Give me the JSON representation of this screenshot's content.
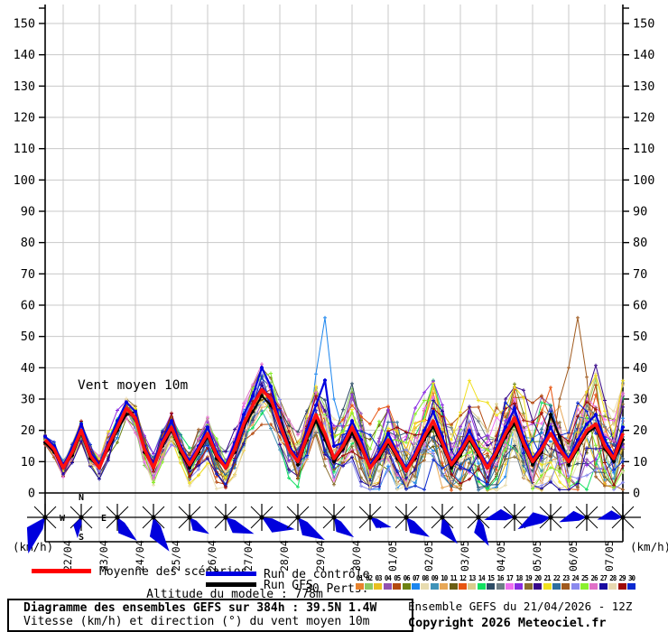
{
  "annotation": "Vent moyen 10m",
  "axes": {
    "unit_left": "(km/h)",
    "unit_right": "(km/h)",
    "y_min": 0,
    "y_max": 150,
    "y_step": 10
  },
  "legend": {
    "mean_label": "Moyenne des scénarios",
    "control_label": "Run de contrôle",
    "gfs_label": "Run GFS",
    "perts_label": "30 Perts.",
    "mean_color": "#ff0000",
    "control_color": "#0000e0",
    "gfs_color": "#000000"
  },
  "altitude_note": "Altitude du modele : 778m",
  "footer": {
    "title": "Diagramme des ensembles GEFS sur 384h : 39.5N 1.4W",
    "subtitle": "Vitesse (km/h) et direction (°) du vent moyen 10m",
    "run_info": "Ensemble GEFS du 21/04/2026 - 12Z",
    "copyright": "Copyright 2026 Meteociel.fr"
  },
  "perturbations": [
    {
      "num": "01",
      "color": "#e8822d"
    },
    {
      "num": "02",
      "color": "#8cc863"
    },
    {
      "num": "03",
      "color": "#e8c020"
    },
    {
      "num": "04",
      "color": "#9353b0"
    },
    {
      "num": "05",
      "color": "#b44a10"
    },
    {
      "num": "06",
      "color": "#6e8212"
    },
    {
      "num": "07",
      "color": "#1c86ee"
    },
    {
      "num": "08",
      "color": "#e8dcb0"
    },
    {
      "num": "09",
      "color": "#4093b8"
    },
    {
      "num": "10",
      "color": "#e8a858"
    },
    {
      "num": "11",
      "color": "#6b5e14"
    },
    {
      "num": "12",
      "color": "#e85510"
    },
    {
      "num": "13",
      "color": "#d9cc8d"
    },
    {
      "num": "14",
      "color": "#12e060"
    },
    {
      "num": "15",
      "color": "#2e4c66"
    },
    {
      "num": "16",
      "color": "#6e7e86"
    },
    {
      "num": "17",
      "color": "#ee6ef0"
    },
    {
      "num": "18",
      "color": "#8a2be2"
    },
    {
      "num": "19",
      "color": "#8a6e2e"
    },
    {
      "num": "20",
      "color": "#38088a"
    },
    {
      "num": "21",
      "color": "#f0e020"
    },
    {
      "num": "22",
      "color": "#2e6e9e"
    },
    {
      "num": "23",
      "color": "#a05a1e"
    },
    {
      "num": "24",
      "color": "#8a8aee"
    },
    {
      "num": "25",
      "color": "#8af02e"
    },
    {
      "num": "26",
      "color": "#e070c8"
    },
    {
      "num": "27",
      "color": "#1a0aa0"
    },
    {
      "num": "28",
      "color": "#e8d8b0"
    },
    {
      "num": "29",
      "color": "#9e0a0a"
    },
    {
      "num": "30",
      "color": "#0a2ad0"
    }
  ],
  "chart_data": {
    "type": "line",
    "title": "Vent moyen 10m",
    "ylabel": "km/h",
    "ylim": [
      0,
      155
    ],
    "grid": true,
    "x_start": "21/04 12Z",
    "x_step_hours": 6,
    "x_total_hours": 384,
    "x_tick_labels": [
      "22/04",
      "23/04",
      "24/04",
      "25/04",
      "26/04",
      "27/04",
      "28/04",
      "29/04",
      "30/04",
      "01/05",
      "02/05",
      "03/05",
      "04/05",
      "05/05",
      "06/05",
      "07/05"
    ],
    "series": [
      {
        "name": "Moyenne des scénarios",
        "color": "#ff1010",
        "values": [
          17,
          14,
          8,
          13,
          20,
          12,
          8,
          15,
          21,
          27,
          24,
          14,
          8,
          16,
          21,
          14,
          9,
          14,
          19,
          12,
          8,
          14,
          22,
          28,
          33,
          30,
          22,
          14,
          10,
          18,
          25,
          19,
          11,
          15,
          21,
          15,
          8,
          12,
          17,
          12,
          7,
          12,
          18,
          23,
          16,
          9,
          13,
          18,
          13,
          8,
          13,
          19,
          24,
          16,
          10,
          14,
          19,
          14,
          10,
          15,
          20,
          22,
          15,
          11,
          19
        ]
      },
      {
        "name": "Run de contrôle",
        "color": "#0000e0",
        "values": [
          18,
          15,
          9,
          14,
          22,
          13,
          9,
          16,
          23,
          29,
          26,
          15,
          9,
          17,
          23,
          15,
          10,
          15,
          21,
          13,
          9,
          16,
          25,
          31,
          40,
          34,
          23,
          15,
          11,
          20,
          28,
          36,
          15,
          16,
          23,
          17,
          9,
          13,
          19,
          13,
          8,
          13,
          20,
          26,
          18,
          10,
          14,
          20,
          14,
          9,
          14,
          21,
          27,
          18,
          11,
          15,
          21,
          15,
          11,
          17,
          22,
          25,
          17,
          12,
          21
        ]
      },
      {
        "name": "Run GFS",
        "color": "#000000",
        "values": [
          16,
          13,
          8,
          12,
          19,
          11,
          8,
          14,
          20,
          25,
          26,
          13,
          8,
          15,
          20,
          13,
          8,
          13,
          18,
          11,
          8,
          13,
          21,
          26,
          31,
          28,
          24,
          16,
          9,
          17,
          23,
          17,
          10,
          14,
          19,
          14,
          8,
          11,
          16,
          11,
          7,
          11,
          17,
          21,
          15,
          8,
          12,
          17,
          12,
          8,
          12,
          18,
          22,
          15,
          9,
          13,
          25,
          18,
          9,
          14,
          19,
          21,
          14,
          10,
          17
        ]
      }
    ],
    "members": {
      "count": 30,
      "derivation": "30 perturbation members: mean series + seeded pseudo-random spread (individual member values not readable from screenshot)",
      "seed": 11,
      "spread_base": 2.2,
      "spread_growth": 0.22,
      "outliers": {
        "6": [
          [
            30,
            38
          ],
          [
            31,
            56
          ],
          [
            32,
            30
          ]
        ],
        "22": [
          [
            57,
            30
          ],
          [
            58,
            40
          ],
          [
            59,
            56
          ],
          [
            60,
            37
          ]
        ]
      }
    },
    "wind_roses": {
      "interval_hours": 24,
      "start": "21/04 12Z",
      "directions_deg": [
        205,
        190,
        140,
        155,
        130,
        120,
        110,
        130,
        135,
        115,
        130,
        150,
        160,
        265,
        250,
        260,
        265
      ],
      "sizes": [
        1.7,
        0.9,
        1.3,
        1.6,
        1.1,
        1.4,
        1.5,
        1.5,
        1.2,
        1.0,
        1.3,
        1.3,
        1.3,
        1.3,
        1.5,
        1.2,
        1.1
      ],
      "compass_labels": [
        "N",
        "E",
        "S",
        "W"
      ],
      "arrow_color": "#0000dd"
    }
  }
}
